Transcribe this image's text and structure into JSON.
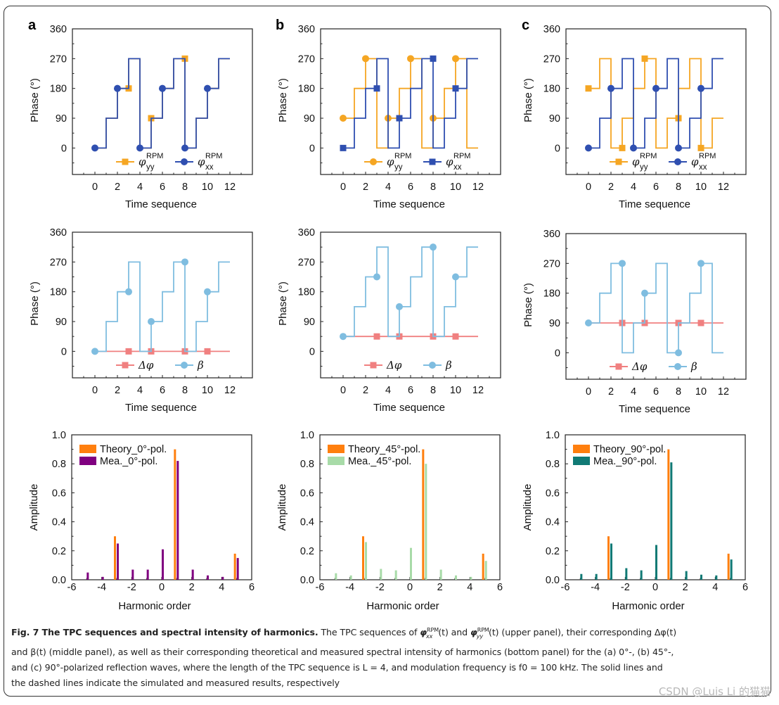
{
  "figure": {
    "panel_labels": [
      "a",
      "b",
      "c"
    ],
    "caption": {
      "title": "Fig. 7 The TPC sequences and spectral intensity of harmonics.",
      "line1_a": "The TPC sequences of ",
      "phi_xx": "φ",
      "phi_xx_sup": "RPM",
      "phi_xx_sub": "xx",
      "t_arg": "(t)",
      "and": " and ",
      "phi_yy_sub": "yy",
      "line1_b": " (upper panel), their corresponding Δφ(t)",
      "line2": "and β(t) (middle panel), as well as their corresponding theoretical and measured spectral intensity of harmonics (bottom panel) for the (a) 0°-, (b) 45°-,",
      "line3": "and (c) 90°-polarized reflection waves, where the length of the TPC sequence is L = 4, and modulation frequency is f0 = 100 kHz. The solid lines and",
      "line4": "the dashed lines indicate the simulated and measured results, respectively"
    },
    "watermark": "CSDN @Luis Li 的猫猫"
  },
  "colors": {
    "phi_xx": "#2f4fb0",
    "phi_yy": "#f5a623",
    "delta_phi": "#f08080",
    "beta": "#7fbde0",
    "theory": "#ff7f0e",
    "mea_0": "#800080",
    "mea_45": "#a8dba8",
    "mea_90": "#117a75"
  },
  "chart_data": [
    {
      "id": "a-top",
      "type": "line",
      "step": true,
      "xlabel": "Time sequence",
      "ylabel": "Phase (°)",
      "xlim": [
        -2,
        14
      ],
      "ylim": [
        -80,
        360
      ],
      "xticks": [
        0,
        2,
        4,
        6,
        8,
        10,
        12
      ],
      "yticks": [
        0,
        90,
        180,
        270,
        360
      ],
      "series": [
        {
          "name": "φyy RPM",
          "label_main": "φ",
          "label_sub": "yy",
          "label_sup": "RPM",
          "color_key": "phi_yy",
          "marker": "square",
          "x": [
            0,
            1,
            2,
            3,
            4,
            5,
            6,
            7,
            8,
            9,
            10,
            11,
            12
          ],
          "y": [
            0,
            90,
            180,
            270,
            0,
            90,
            180,
            270,
            0,
            90,
            180,
            270,
            270
          ],
          "markers": [
            [
              3,
              180
            ],
            [
              5,
              90
            ],
            [
              8,
              270
            ]
          ]
        },
        {
          "name": "φxx RPM",
          "label_main": "φ",
          "label_sub": "xx",
          "label_sup": "RPM",
          "color_key": "phi_xx",
          "marker": "circle",
          "x": [
            0,
            1,
            2,
            3,
            4,
            5,
            6,
            7,
            8,
            9,
            10,
            11,
            12
          ],
          "y": [
            0,
            90,
            180,
            270,
            0,
            90,
            180,
            270,
            0,
            90,
            180,
            270,
            270
          ],
          "markers": [
            [
              0,
              0
            ],
            [
              2,
              180
            ],
            [
              4,
              0
            ],
            [
              6,
              180
            ],
            [
              8,
              0
            ],
            [
              10,
              180
            ]
          ]
        }
      ]
    },
    {
      "id": "b-top",
      "type": "line",
      "step": true,
      "xlabel": "Time sequence",
      "ylabel": "Phase (°)",
      "xlim": [
        -2,
        14
      ],
      "ylim": [
        -80,
        360
      ],
      "xticks": [
        0,
        2,
        4,
        6,
        8,
        10,
        12
      ],
      "yticks": [
        0,
        90,
        180,
        270,
        360
      ],
      "series": [
        {
          "name": "φyy RPM",
          "label_main": "φ",
          "label_sub": "yy",
          "label_sup": "RPM",
          "color_key": "phi_yy",
          "marker": "circle",
          "x": [
            0,
            1,
            2,
            3,
            4,
            5,
            6,
            7,
            8,
            9,
            10,
            11,
            12
          ],
          "y": [
            90,
            180,
            270,
            0,
            90,
            180,
            270,
            0,
            90,
            180,
            270,
            0,
            0
          ],
          "markers": [
            [
              0,
              90
            ],
            [
              2,
              270
            ],
            [
              4,
              90
            ],
            [
              6,
              270
            ],
            [
              8,
              90
            ],
            [
              10,
              270
            ]
          ]
        },
        {
          "name": "φxx RPM",
          "label_main": "φ",
          "label_sub": "xx",
          "label_sup": "RPM",
          "color_key": "phi_xx",
          "marker": "square",
          "x": [
            0,
            1,
            2,
            3,
            4,
            5,
            6,
            7,
            8,
            9,
            10,
            11,
            12
          ],
          "y": [
            0,
            90,
            180,
            270,
            0,
            90,
            180,
            270,
            0,
            90,
            180,
            270,
            270
          ],
          "markers": [
            [
              0,
              0
            ],
            [
              3,
              180
            ],
            [
              5,
              90
            ],
            [
              8,
              270
            ],
            [
              10,
              180
            ]
          ]
        }
      ]
    },
    {
      "id": "c-top",
      "type": "line",
      "step": true,
      "xlabel": "Time sequence",
      "ylabel": "Phase (°)",
      "xlim": [
        -2,
        14
      ],
      "ylim": [
        -80,
        360
      ],
      "xticks": [
        0,
        2,
        4,
        6,
        8,
        10,
        12
      ],
      "yticks": [
        0,
        90,
        180,
        270,
        360
      ],
      "series": [
        {
          "name": "φyy RPM",
          "label_main": "φ",
          "label_sub": "yy",
          "label_sup": "RPM",
          "color_key": "phi_yy",
          "marker": "square",
          "x": [
            0,
            1,
            2,
            3,
            4,
            5,
            6,
            7,
            8,
            9,
            10,
            11,
            12
          ],
          "y": [
            180,
            270,
            0,
            90,
            180,
            270,
            0,
            90,
            180,
            270,
            0,
            90,
            90
          ],
          "markers": [
            [
              0,
              180
            ],
            [
              3,
              0
            ],
            [
              5,
              270
            ],
            [
              8,
              90
            ],
            [
              10,
              0
            ]
          ]
        },
        {
          "name": "φxx RPM",
          "label_main": "φ",
          "label_sub": "xx",
          "label_sup": "RPM",
          "color_key": "phi_xx",
          "marker": "circle",
          "x": [
            0,
            1,
            2,
            3,
            4,
            5,
            6,
            7,
            8,
            9,
            10,
            11,
            12
          ],
          "y": [
            0,
            90,
            180,
            270,
            0,
            90,
            180,
            270,
            0,
            90,
            180,
            270,
            270
          ],
          "markers": [
            [
              0,
              0
            ],
            [
              2,
              180
            ],
            [
              4,
              0
            ],
            [
              6,
              180
            ],
            [
              8,
              0
            ],
            [
              10,
              180
            ]
          ]
        }
      ]
    },
    {
      "id": "a-mid",
      "type": "line",
      "step": true,
      "xlabel": "Time sequence",
      "ylabel": "Phase (°)",
      "xlim": [
        -2,
        14
      ],
      "ylim": [
        -80,
        360
      ],
      "xticks": [
        0,
        2,
        4,
        6,
        8,
        10,
        12
      ],
      "yticks": [
        0,
        90,
        180,
        270,
        360
      ],
      "series": [
        {
          "name": "Δφ",
          "label_main": "Δφ",
          "color_key": "delta_phi",
          "marker": "square",
          "x": [
            0,
            12
          ],
          "y": [
            0,
            0
          ],
          "markers": [
            [
              3,
              0
            ],
            [
              5,
              0
            ],
            [
              8,
              0
            ],
            [
              10,
              0
            ]
          ]
        },
        {
          "name": "β",
          "label_main": "β",
          "color_key": "beta",
          "marker": "circle",
          "x": [
            0,
            1,
            2,
            3,
            4,
            5,
            6,
            7,
            8,
            9,
            10,
            11,
            12
          ],
          "y": [
            0,
            90,
            180,
            270,
            0,
            90,
            180,
            270,
            0,
            90,
            180,
            270,
            270
          ],
          "markers": [
            [
              0,
              0
            ],
            [
              3,
              180
            ],
            [
              5,
              90
            ],
            [
              8,
              270
            ],
            [
              10,
              180
            ]
          ]
        }
      ]
    },
    {
      "id": "b-mid",
      "type": "line",
      "step": true,
      "xlabel": "Time sequence",
      "ylabel": "Phase (°)",
      "xlim": [
        -2,
        14
      ],
      "ylim": [
        -80,
        360
      ],
      "xticks": [
        0,
        2,
        4,
        6,
        8,
        10,
        12
      ],
      "yticks": [
        0,
        90,
        180,
        270,
        360
      ],
      "series": [
        {
          "name": "Δφ",
          "label_main": "Δφ",
          "color_key": "delta_phi",
          "marker": "square",
          "x": [
            0,
            12
          ],
          "y": [
            45,
            45
          ],
          "markers": [
            [
              3,
              45
            ],
            [
              5,
              45
            ],
            [
              8,
              45
            ],
            [
              10,
              45
            ]
          ]
        },
        {
          "name": "β",
          "label_main": "β",
          "color_key": "beta",
          "marker": "circle",
          "x": [
            0,
            1,
            2,
            3,
            4,
            5,
            6,
            7,
            8,
            9,
            10,
            11,
            12
          ],
          "y": [
            45,
            135,
            225,
            315,
            45,
            135,
            225,
            315,
            45,
            135,
            225,
            315,
            315
          ],
          "markers": [
            [
              0,
              45
            ],
            [
              3,
              225
            ],
            [
              5,
              135
            ],
            [
              8,
              315
            ],
            [
              10,
              225
            ]
          ]
        }
      ]
    },
    {
      "id": "c-mid",
      "type": "line",
      "step": true,
      "xlabel": "Time sequence",
      "ylabel": "Phase (°)",
      "xlim": [
        -2,
        14
      ],
      "ylim": [
        -80,
        360
      ],
      "xticks": [
        0,
        2,
        4,
        6,
        8,
        10,
        12
      ],
      "yticks": [
        0,
        90,
        180,
        270,
        360
      ],
      "series": [
        {
          "name": "Δφ",
          "label_main": "Δφ",
          "color_key": "delta_phi",
          "marker": "square",
          "x": [
            0,
            12
          ],
          "y": [
            90,
            90
          ],
          "markers": [
            [
              3,
              90
            ],
            [
              5,
              90
            ],
            [
              8,
              90
            ],
            [
              10,
              90
            ]
          ]
        },
        {
          "name": "β",
          "label_main": "β",
          "color_key": "beta",
          "marker": "circle",
          "x": [
            0,
            1,
            2,
            3,
            4,
            5,
            6,
            7,
            8,
            9,
            10,
            11,
            12
          ],
          "y": [
            90,
            180,
            270,
            0,
            90,
            180,
            270,
            0,
            90,
            180,
            270,
            0,
            0
          ],
          "markers": [
            [
              0,
              90
            ],
            [
              3,
              270
            ],
            [
              5,
              180
            ],
            [
              8,
              0
            ],
            [
              10,
              270
            ]
          ]
        }
      ]
    },
    {
      "id": "a-bottom",
      "type": "bar",
      "xlabel": "Harmonic order",
      "ylabel": "Amplitude",
      "xlim": [
        -6,
        6
      ],
      "ylim": [
        0,
        1.0
      ],
      "xticks": [
        -6,
        -4,
        -2,
        0,
        2,
        4,
        6
      ],
      "yticks": [
        0.0,
        0.2,
        0.4,
        0.6,
        0.8,
        1.0
      ],
      "categories": [
        -5,
        -4,
        -3,
        -2,
        -1,
        0,
        1,
        2,
        3,
        4,
        5
      ],
      "series": [
        {
          "name": "Theory_0°-pol.",
          "color_key": "theory",
          "values": [
            0,
            0,
            0.3,
            0,
            0,
            0,
            0.9,
            0,
            0,
            0,
            0.18
          ]
        },
        {
          "name": "Mea._0°-pol.",
          "color_key": "mea_0",
          "values": [
            0.05,
            0.02,
            0.25,
            0.07,
            0.07,
            0.21,
            0.82,
            0.07,
            0.03,
            0.02,
            0.15
          ]
        }
      ]
    },
    {
      "id": "b-bottom",
      "type": "bar",
      "xlabel": "Harmonic order",
      "ylabel": "Amplitude",
      "xlim": [
        -6,
        6
      ],
      "ylim": [
        0,
        1.0
      ],
      "xticks": [
        -6,
        -4,
        -2,
        0,
        2,
        4,
        6
      ],
      "yticks": [
        0.0,
        0.2,
        0.4,
        0.6,
        0.8,
        1.0
      ],
      "categories": [
        -5,
        -4,
        -3,
        -2,
        -1,
        0,
        1,
        2,
        3,
        4,
        5
      ],
      "series": [
        {
          "name": "Theory_45°-pol.",
          "color_key": "theory",
          "values": [
            0,
            0,
            0.3,
            0,
            0,
            0,
            0.9,
            0,
            0,
            0,
            0.18
          ]
        },
        {
          "name": "Mea._45°-pol.",
          "color_key": "mea_45",
          "values": [
            0.045,
            0.03,
            0.26,
            0.075,
            0.065,
            0.22,
            0.8,
            0.07,
            0.03,
            0.02,
            0.13
          ]
        }
      ]
    },
    {
      "id": "c-bottom",
      "type": "bar",
      "xlabel": "Harmonic order",
      "ylabel": "Amplitude",
      "xlim": [
        -6,
        6
      ],
      "ylim": [
        0,
        1.0
      ],
      "xticks": [
        -6,
        -4,
        -2,
        0,
        2,
        4,
        6
      ],
      "yticks": [
        0.0,
        0.2,
        0.4,
        0.6,
        0.8,
        1.0
      ],
      "categories": [
        -5,
        -4,
        -3,
        -2,
        -1,
        0,
        1,
        2,
        3,
        4,
        5
      ],
      "series": [
        {
          "name": "Theory_90°-pol.",
          "color_key": "theory",
          "values": [
            0,
            0,
            0.3,
            0,
            0,
            0,
            0.9,
            0,
            0,
            0,
            0.18
          ]
        },
        {
          "name": "Mea._90°-pol.",
          "color_key": "mea_90",
          "values": [
            0.04,
            0.04,
            0.25,
            0.08,
            0.065,
            0.24,
            0.81,
            0.06,
            0.035,
            0.03,
            0.14
          ]
        }
      ]
    }
  ]
}
